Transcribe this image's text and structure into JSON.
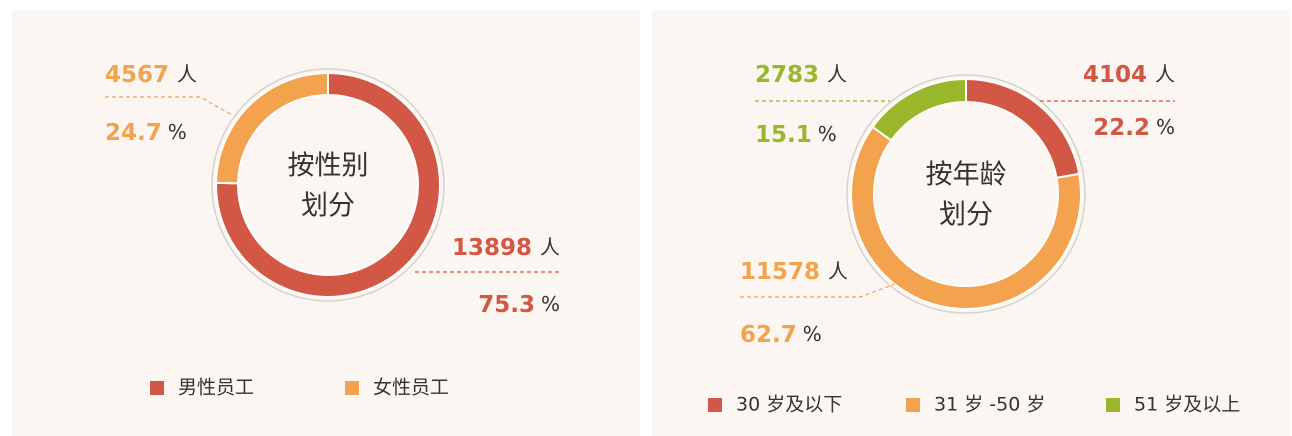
{
  "chart_data": [
    {
      "type": "pie",
      "title_lines": [
        "按性别",
        "划分"
      ],
      "categories": [
        "男性员工",
        "女性员工"
      ],
      "values": [
        75.3,
        24.7
      ],
      "counts": [
        13898,
        4567
      ],
      "colors": [
        "#d35745",
        "#f3a24e"
      ],
      "count_unit": "人",
      "percent_unit": "%"
    },
    {
      "type": "pie",
      "title_lines": [
        "按年龄",
        "划分"
      ],
      "categories": [
        "30 岁及以下",
        "31 岁 -50 岁",
        "51 岁及以上"
      ],
      "values": [
        22.2,
        62.7,
        15.1
      ],
      "counts": [
        4104,
        11578,
        2783
      ],
      "colors": [
        "#d35745",
        "#f3a24e",
        "#9ab62a"
      ],
      "count_unit": "人",
      "percent_unit": "%"
    }
  ]
}
